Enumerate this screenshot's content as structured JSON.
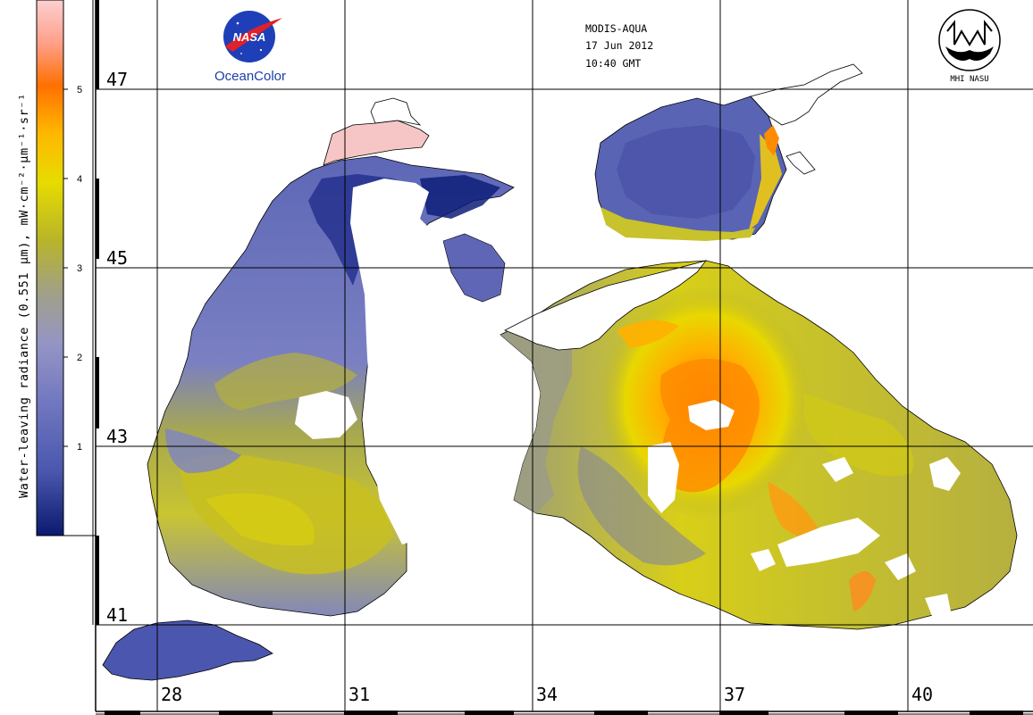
{
  "header": {
    "sensor": "MODIS-AQUA",
    "date": "17 Jun 2012",
    "time": "10:40 GMT"
  },
  "logos": {
    "nasa_text": "NASA",
    "oceancolor_text": "OceanColor",
    "mhi_text": "MHI NASU"
  },
  "colorbar": {
    "title": "Water-leaving radiance (0.551 µm), mW·cm⁻²·µm⁻¹·sr⁻¹",
    "ticks": [
      "1",
      "2",
      "3",
      "4",
      "5"
    ],
    "range": [
      0,
      6
    ],
    "colors": [
      "#0a1a6e",
      "#5563b8",
      "#8a8cc8",
      "#a0a090",
      "#c8c41e",
      "#f0e400",
      "#ff9a00",
      "#ff6a00",
      "#f8b8b8"
    ]
  },
  "map": {
    "latitude_labels": [
      "47",
      "45",
      "43",
      "41"
    ],
    "longitude_labels": [
      "28",
      "31",
      "34",
      "37",
      "40"
    ],
    "water_color": "#ffffff",
    "grid_color": "#000000"
  }
}
